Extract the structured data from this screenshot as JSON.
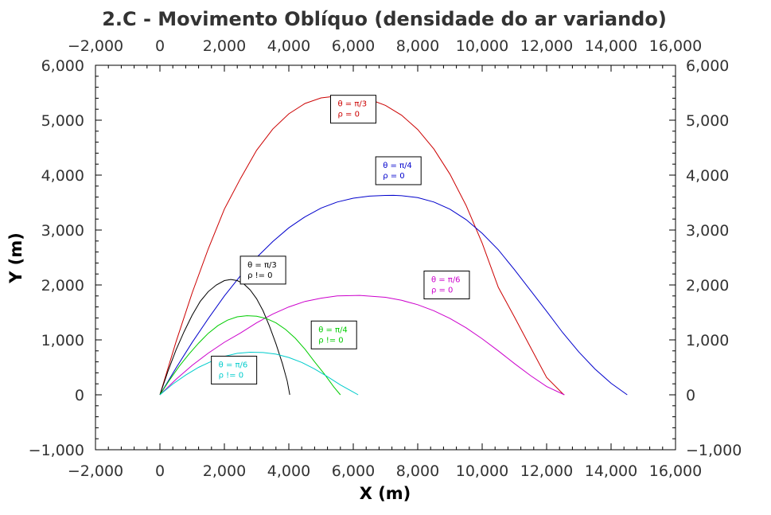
{
  "chart_data": {
    "type": "line",
    "title": "2.C - Movimento Oblíquo (densidade do ar variando)",
    "xlabel": "X (m)",
    "ylabel": "Y (m)",
    "xlim": [
      -2000,
      16000
    ],
    "ylim": [
      -1000,
      6000
    ],
    "x_ticks": [
      -2000,
      0,
      2000,
      4000,
      6000,
      8000,
      10000,
      12000,
      14000,
      16000
    ],
    "y_ticks": [
      -1000,
      0,
      1000,
      2000,
      3000,
      4000,
      5000,
      6000
    ],
    "x_tick_labels": [
      "−2,000",
      "0",
      "2,000",
      "4,000",
      "6,000",
      "8,000",
      "10,000",
      "12,000",
      "14,000",
      "16,000"
    ],
    "y_tick_labels": [
      "−1,000",
      "0",
      "1,000",
      "2,000",
      "3,000",
      "4,000",
      "5,000",
      "6,000"
    ],
    "grid": false,
    "series": [
      {
        "color": "#cc0000",
        "annotation": [
          "θ = π/3",
          "ρ = 0"
        ],
        "annotation_at": [
          6000,
          5200
        ],
        "points": [
          [
            0,
            0
          ],
          [
            500,
            968
          ],
          [
            1000,
            1855
          ],
          [
            1500,
            2660
          ],
          [
            2000,
            3381
          ],
          [
            2500,
            3939
          ],
          [
            3000,
            4452
          ],
          [
            3500,
            4838
          ],
          [
            4000,
            5116
          ],
          [
            4500,
            5304
          ],
          [
            5000,
            5406
          ],
          [
            5500,
            5440
          ],
          [
            6000,
            5430
          ],
          [
            6500,
            5380
          ],
          [
            7000,
            5270
          ],
          [
            7500,
            5090
          ],
          [
            8000,
            4830
          ],
          [
            8500,
            4475
          ],
          [
            9000,
            4018
          ],
          [
            9500,
            3448
          ],
          [
            10000,
            2763
          ],
          [
            10500,
            1956
          ],
          [
            11000,
            1419
          ],
          [
            11500,
            864
          ],
          [
            12000,
            316
          ],
          [
            12500,
            20
          ],
          [
            12550,
            0
          ]
        ]
      },
      {
        "color": "#0000cc",
        "annotation": [
          "θ = π/4",
          "ρ = 0"
        ],
        "annotation_at": [
          7400,
          4080
        ],
        "points": [
          [
            0,
            0
          ],
          [
            500,
            489
          ],
          [
            1000,
            954
          ],
          [
            1500,
            1389
          ],
          [
            2000,
            1800
          ],
          [
            2500,
            2170
          ],
          [
            3000,
            2500
          ],
          [
            3500,
            2790
          ],
          [
            4000,
            3040
          ],
          [
            4500,
            3240
          ],
          [
            5000,
            3400
          ],
          [
            5500,
            3510
          ],
          [
            6000,
            3580
          ],
          [
            6500,
            3618
          ],
          [
            7000,
            3630
          ],
          [
            7250,
            3632
          ],
          [
            7500,
            3625
          ],
          [
            8000,
            3590
          ],
          [
            8500,
            3510
          ],
          [
            9000,
            3380
          ],
          [
            9500,
            3190
          ],
          [
            10000,
            2940
          ],
          [
            10500,
            2640
          ],
          [
            11000,
            2280
          ],
          [
            11500,
            1900
          ],
          [
            12000,
            1520
          ],
          [
            12500,
            1130
          ],
          [
            13000,
            780
          ],
          [
            13500,
            470
          ],
          [
            14000,
            210
          ],
          [
            14500,
            0
          ]
        ]
      },
      {
        "color": "#cc00cc",
        "annotation": [
          "θ = π/6",
          "ρ = 0"
        ],
        "annotation_at": [
          8900,
          2000
        ],
        "points": [
          [
            0,
            0
          ],
          [
            500,
            283
          ],
          [
            1000,
            536
          ],
          [
            1500,
            760
          ],
          [
            2000,
            956
          ],
          [
            2500,
            1126
          ],
          [
            3000,
            1310
          ],
          [
            3500,
            1470
          ],
          [
            4000,
            1600
          ],
          [
            4500,
            1700
          ],
          [
            5000,
            1760
          ],
          [
            5500,
            1800
          ],
          [
            6200,
            1810
          ],
          [
            7000,
            1775
          ],
          [
            7500,
            1720
          ],
          [
            8000,
            1640
          ],
          [
            8500,
            1530
          ],
          [
            9000,
            1390
          ],
          [
            9500,
            1220
          ],
          [
            10000,
            1020
          ],
          [
            10500,
            800
          ],
          [
            11000,
            570
          ],
          [
            11500,
            350
          ],
          [
            12000,
            150
          ],
          [
            12550,
            0
          ]
        ]
      },
      {
        "color": "#000000",
        "annotation": [
          "θ = π/3",
          "ρ != 0"
        ],
        "annotation_at": [
          3200,
          2270
        ],
        "points": [
          [
            0,
            0
          ],
          [
            250,
            430
          ],
          [
            500,
            820
          ],
          [
            750,
            1150
          ],
          [
            1000,
            1450
          ],
          [
            1250,
            1700
          ],
          [
            1500,
            1880
          ],
          [
            1750,
            2000
          ],
          [
            2000,
            2080
          ],
          [
            2200,
            2100
          ],
          [
            2400,
            2080
          ],
          [
            2600,
            2020
          ],
          [
            2800,
            1910
          ],
          [
            3000,
            1750
          ],
          [
            3200,
            1530
          ],
          [
            3400,
            1250
          ],
          [
            3600,
            930
          ],
          [
            3800,
            570
          ],
          [
            3950,
            250
          ],
          [
            4030,
            0
          ]
        ]
      },
      {
        "color": "#00cc00",
        "annotation": [
          "θ = π/4",
          "ρ != 0"
        ],
        "annotation_at": [
          5400,
          1090
        ],
        "points": [
          [
            0,
            0
          ],
          [
            300,
            270
          ],
          [
            600,
            520
          ],
          [
            900,
            740
          ],
          [
            1200,
            940
          ],
          [
            1500,
            1120
          ],
          [
            1800,
            1260
          ],
          [
            2100,
            1360
          ],
          [
            2400,
            1420
          ],
          [
            2700,
            1440
          ],
          [
            3000,
            1430
          ],
          [
            3300,
            1390
          ],
          [
            3600,
            1310
          ],
          [
            3900,
            1190
          ],
          [
            4200,
            1030
          ],
          [
            4500,
            830
          ],
          [
            4800,
            600
          ],
          [
            5100,
            380
          ],
          [
            5400,
            140
          ],
          [
            5600,
            0
          ]
        ]
      },
      {
        "color": "#00cccc",
        "annotation": [
          "θ = π/6",
          "ρ != 0"
        ],
        "annotation_at": [
          2300,
          450
        ],
        "points": [
          [
            0,
            0
          ],
          [
            400,
            195
          ],
          [
            800,
            360
          ],
          [
            1200,
            500
          ],
          [
            1600,
            610
          ],
          [
            2000,
            700
          ],
          [
            2400,
            755
          ],
          [
            2800,
            775
          ],
          [
            3200,
            770
          ],
          [
            3600,
            740
          ],
          [
            4000,
            680
          ],
          [
            4400,
            590
          ],
          [
            4800,
            470
          ],
          [
            5200,
            330
          ],
          [
            5600,
            180
          ],
          [
            6000,
            50
          ],
          [
            6150,
            0
          ]
        ]
      }
    ]
  }
}
